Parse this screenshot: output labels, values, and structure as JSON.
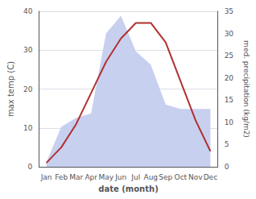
{
  "chart_data": {
    "type": "line",
    "xlabel": "date (month)",
    "ylabel": "max temp (C)",
    "y2label": "med. precipitation (kg/m2)",
    "categories": [
      "Jan",
      "Feb",
      "Mar",
      "Apr",
      "May",
      "Jun",
      "Jul",
      "Aug",
      "Sep",
      "Oct",
      "Nov",
      "Dec"
    ],
    "series": [
      {
        "type": "area",
        "color": "#c8d0f0",
        "axis": "y2",
        "values": [
          1,
          9,
          11,
          12,
          30,
          34,
          26,
          23,
          14,
          13,
          13,
          13
        ]
      },
      {
        "type": "line",
        "color": "#b03030",
        "values": [
          1,
          5,
          11,
          19,
          27,
          33,
          37,
          37,
          32,
          22,
          12,
          4
        ]
      }
    ],
    "ylim": [
      0,
      40
    ],
    "yticks": [
      0,
      10,
      20,
      30,
      40
    ],
    "y2lim": [
      0,
      35
    ],
    "y2ticks": [
      0,
      5,
      10,
      15,
      20,
      25,
      30,
      35
    ],
    "grid": true
  }
}
